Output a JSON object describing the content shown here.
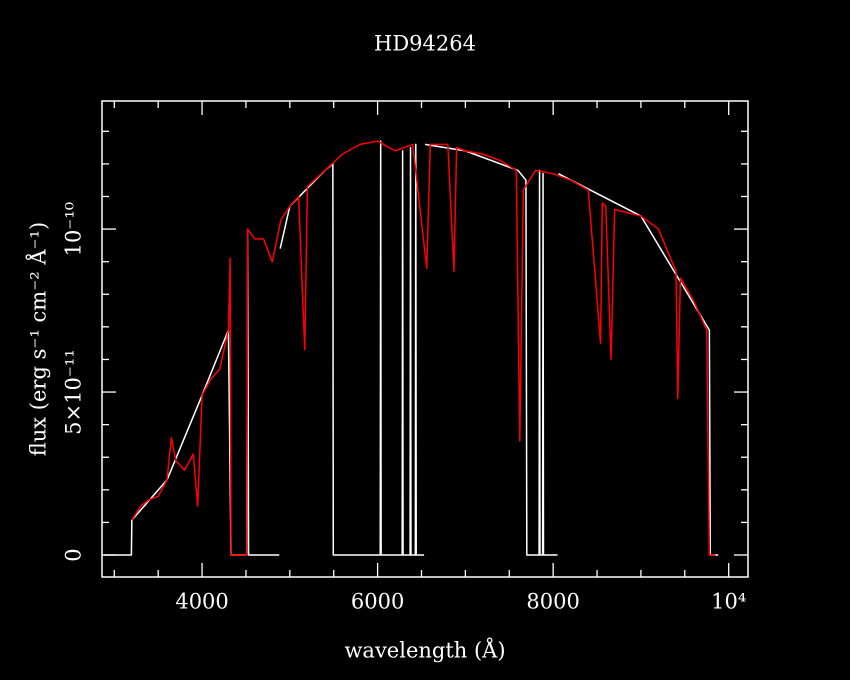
{
  "chart_data": {
    "type": "line",
    "title": "HD94264",
    "xlabel": "wavelength (Å)",
    "ylabel": "flux (erg s⁻¹ cm⁻² Å⁻¹)",
    "xlim": [
      2860,
      10220
    ],
    "ylim": [
      -6.75e-12,
      1.393e-10
    ],
    "xticks": [
      4000,
      6000,
      8000,
      {
        "value": 10000,
        "label": "10⁴"
      }
    ],
    "yticks": [
      0,
      {
        "value": 5e-11,
        "label": "5×10⁻¹¹"
      },
      {
        "value": 1e-10,
        "label": "10⁻¹⁰"
      }
    ],
    "xminorticks": [
      3000,
      3500,
      4500,
      5000,
      5500,
      6500,
      7000,
      7500,
      8500,
      9000,
      9500
    ],
    "yminorticks": [
      1e-11,
      2e-11,
      3e-11,
      4e-11,
      6e-11,
      7e-11,
      8e-11,
      9e-11,
      1.1e-10,
      1.2e-10,
      1.3e-10
    ],
    "series": [
      {
        "color": "#ffffff",
        "x": [
          2880,
          3195,
          3200,
          3600,
          4000,
          4300,
          4330,
          4510,
          4520,
          4530,
          4880,
          4885,
          4890,
          5000,
          5400,
          5490,
          5495,
          6030,
          6035,
          6040,
          6280,
          6285,
          6290,
          6370,
          6375,
          6380,
          6430,
          6435,
          6440,
          6530,
          6535,
          6540,
          7000,
          7600,
          7690,
          7700,
          7840,
          7845,
          7850,
          7880,
          7885,
          7890,
          8050,
          8055,
          8060,
          9000,
          9780,
          9790,
          9880
        ],
        "values": [
          0,
          0,
          1.07e-11,
          2.3e-11,
          4.9e-11,
          6.9e-11,
          0,
          0,
          1e-10,
          0,
          0,
          null,
          9.4e-11,
          1.07e-10,
          1.18e-10,
          1.2e-10,
          0,
          0,
          1.27e-10,
          0,
          0,
          1.24e-10,
          0,
          0,
          1.25e-10,
          0,
          0,
          1.26e-10,
          0,
          0,
          null,
          1.26e-10,
          1.24e-10,
          1.18e-10,
          1.15e-10,
          0,
          0,
          1.18e-10,
          0,
          0,
          1.17e-10,
          0,
          0,
          null,
          1.17e-10,
          1.04e-10,
          6.9e-11,
          0,
          0
        ]
      },
      {
        "color": "#ff0000",
        "x": [
          3200,
          3300,
          3400,
          3500,
          3600,
          3650,
          3700,
          3800,
          3900,
          3950,
          4000,
          4100,
          4200,
          4300,
          4320,
          4330,
          4510,
          4520,
          4600,
          4700,
          4800,
          4900,
          5000,
          5100,
          5170,
          5200,
          5400,
          5600,
          5800,
          6000,
          6200,
          6400,
          6560,
          6600,
          6800,
          6870,
          6900,
          7000,
          7200,
          7400,
          7580,
          7620,
          7660,
          7800,
          8000,
          8200,
          8400,
          8540,
          8560,
          8600,
          8660,
          8700,
          9000,
          9200,
          9400,
          9420,
          9450,
          9600,
          9750,
          9780,
          9850
        ],
        "values": [
          1.07e-11,
          1.5e-11,
          1.7e-11,
          1.8e-11,
          2.3e-11,
          3.6e-11,
          2.9e-11,
          2.6e-11,
          3.1e-11,
          1.5e-11,
          4.9e-11,
          5.4e-11,
          5.7e-11,
          6.9e-11,
          9.1e-11,
          0,
          0,
          1e-10,
          9.7e-11,
          9.7e-11,
          9e-11,
          1.03e-10,
          1.07e-10,
          1.1e-10,
          6.3e-11,
          1.13e-10,
          1.18e-10,
          1.23e-10,
          1.26e-10,
          1.27e-10,
          1.24e-10,
          1.26e-10,
          8.8e-11,
          1.26e-10,
          1.26e-10,
          8.7e-11,
          1.25e-10,
          1.24e-10,
          1.23e-10,
          1.21e-10,
          1.18e-10,
          3.5e-11,
          1.12e-10,
          1.18e-10,
          1.17e-10,
          1.15e-10,
          1.12e-10,
          6.5e-11,
          1.08e-10,
          1.07e-10,
          6e-11,
          1.06e-10,
          1.04e-10,
          1e-10,
          8.7e-11,
          4.8e-11,
          8.5e-11,
          7.8e-11,
          6.9e-11,
          0,
          0
        ]
      }
    ]
  }
}
